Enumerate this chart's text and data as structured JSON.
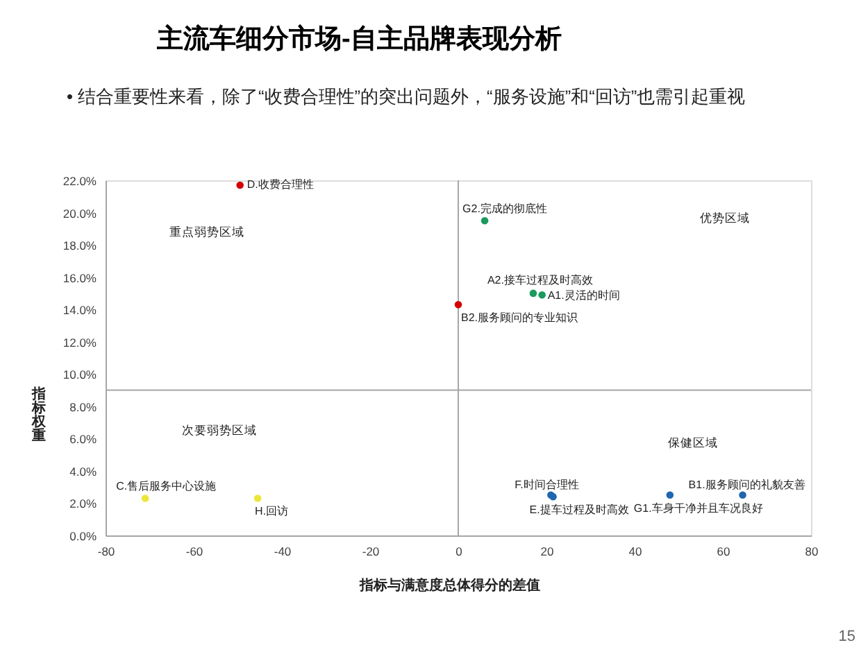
{
  "chart_data": {
    "type": "scatter",
    "title": "主流车细分市场-自主品牌表现分析",
    "subtitle": "• 结合重要性来看，除了“收费合理性”的突出问题外，“服务设施”和“回访”也需引起重视",
    "xlabel": "指标与满意度总体得分的差值",
    "ylabel": "指标权重",
    "x": [
      -49.5,
      6,
      17,
      19,
      0,
      -71,
      -45.5,
      21,
      21.5,
      48,
      64.5
    ],
    "values": [
      21.7,
      19.5,
      15.0,
      14.9,
      14.3,
      2.3,
      2.3,
      2.5,
      2.4,
      2.5,
      2.5
    ],
    "colors": [
      "#d40000",
      "#1a9a5e",
      "#1a9a5e",
      "#1a9a5e",
      "#d40000",
      "#ece63a",
      "#ece63a",
      "#1f66b0",
      "#1f66b0",
      "#1f66b0",
      "#1f66b0"
    ],
    "marker": "circle",
    "xlim": [
      -80,
      80
    ],
    "ylim": [
      0,
      22
    ],
    "xticks": [
      -80,
      -60,
      -40,
      -20,
      0,
      20,
      40,
      60,
      80
    ],
    "yticks": [
      {
        "value": 0,
        "label": "0.0%"
      },
      {
        "value": 2,
        "label": "2.0%"
      },
      {
        "value": 4,
        "label": "4.0%"
      },
      {
        "value": 6,
        "label": "6.0%"
      },
      {
        "value": 8,
        "label": "8.0%"
      },
      {
        "value": 10,
        "label": "10.0%"
      },
      {
        "value": 12,
        "label": "12.0%"
      },
      {
        "value": 14,
        "label": "14.0%"
      },
      {
        "value": 16,
        "label": "16.0%"
      },
      {
        "value": 18,
        "label": "18.0%"
      },
      {
        "value": 20,
        "label": "20.0%"
      },
      {
        "value": 22,
        "label": "22.0%"
      }
    ],
    "ref_lines": [
      {
        "axis": "x",
        "value": 0,
        "color": "#a6a6a6"
      },
      {
        "axis": "y",
        "value": 9,
        "color": "#a6a6a6"
      }
    ],
    "annotations": [
      {
        "text": "D.收费合理性",
        "x": -49.5,
        "y": 21.7
      },
      {
        "text": "G2.完成的彻底性",
        "x": 6,
        "y": 19.5
      },
      {
        "text": "A2.接车过程及时高效",
        "x": 17,
        "y": 15.0
      },
      {
        "text": "A1.灵活的时间",
        "x": 19,
        "y": 14.9
      },
      {
        "text": "B2.服务顾问的专业知识",
        "x": 0,
        "y": 14.3
      },
      {
        "text": "C.售后服务中心设施",
        "x": -71,
        "y": 2.3
      },
      {
        "text": "H.回访",
        "x": -45.5,
        "y": 2.3
      },
      {
        "text": "F.时间合理性",
        "x": 21,
        "y": 2.5
      },
      {
        "text": "E.提车过程及时高效",
        "x": 21.5,
        "y": 2.4
      },
      {
        "text": "G1.车身干净并且车况良好",
        "x": 48,
        "y": 2.5
      },
      {
        "text": "B1.服务顾问的礼貌友善",
        "x": 64.5,
        "y": 2.5
      },
      "重点弱势区域",
      "优势区域",
      "次要弱势区域",
      "保健区域",
      "15"
    ]
  }
}
